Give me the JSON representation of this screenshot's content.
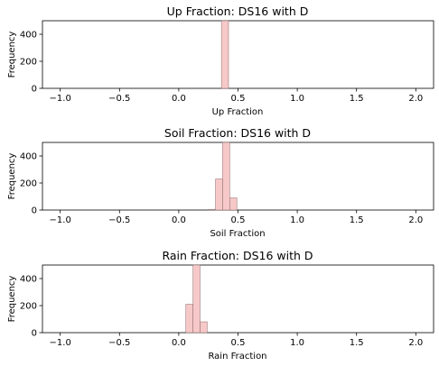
{
  "chart_data": [
    {
      "type": "bar",
      "title": "Up Fraction: DS16 with D",
      "xlabel": "Up Fraction",
      "ylabel": "Frequency",
      "xlim": [
        -1.15,
        2.15
      ],
      "ylim": [
        0,
        500
      ],
      "xticks": [
        "−1.0",
        "−0.5",
        "0.0",
        "0.5",
        "1.0",
        "1.5",
        "2.0"
      ],
      "xtick_values": [
        -1.0,
        -0.5,
        0.0,
        0.5,
        1.0,
        1.5,
        2.0
      ],
      "yticks": [
        "0",
        "200",
        "400"
      ],
      "ytick_values": [
        0,
        200,
        400
      ],
      "bars": [
        {
          "x0": 0.36,
          "x1": 0.42,
          "value": 500
        }
      ]
    },
    {
      "type": "bar",
      "title": "Soil Fraction: DS16 with D",
      "xlabel": "Soil Fraction",
      "ylabel": "Frequency",
      "xlim": [
        -1.15,
        2.15
      ],
      "ylim": [
        0,
        500
      ],
      "xticks": [
        "−1.0",
        "−0.5",
        "0.0",
        "0.5",
        "1.0",
        "1.5",
        "2.0"
      ],
      "xtick_values": [
        -1.0,
        -0.5,
        0.0,
        0.5,
        1.0,
        1.5,
        2.0
      ],
      "yticks": [
        "0",
        "200",
        "400"
      ],
      "ytick_values": [
        0,
        200,
        400
      ],
      "bars": [
        {
          "x0": 0.25,
          "x1": 0.31,
          "value": 5
        },
        {
          "x0": 0.31,
          "x1": 0.37,
          "value": 230
        },
        {
          "x0": 0.37,
          "x1": 0.43,
          "value": 500
        },
        {
          "x0": 0.43,
          "x1": 0.49,
          "value": 90
        }
      ]
    },
    {
      "type": "bar",
      "title": "Rain Fraction: DS16 with D",
      "xlabel": "Rain Fraction",
      "ylabel": "Frequency",
      "xlim": [
        -1.15,
        2.15
      ],
      "ylim": [
        0,
        500
      ],
      "xticks": [
        "−1.0",
        "−0.5",
        "0.0",
        "0.5",
        "1.0",
        "1.5",
        "2.0"
      ],
      "xtick_values": [
        -1.0,
        -0.5,
        0.0,
        0.5,
        1.0,
        1.5,
        2.0
      ],
      "yticks": [
        "0",
        "200",
        "400"
      ],
      "ytick_values": [
        0,
        200,
        400
      ],
      "bars": [
        {
          "x0": 0.06,
          "x1": 0.12,
          "value": 210
        },
        {
          "x0": 0.12,
          "x1": 0.18,
          "value": 500
        },
        {
          "x0": 0.18,
          "x1": 0.24,
          "value": 80
        }
      ]
    }
  ]
}
